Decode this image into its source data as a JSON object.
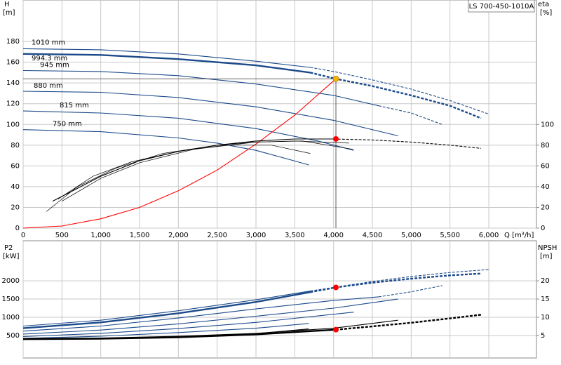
{
  "chart_data": [
    {
      "type": "line",
      "title": "LS 700-450-1010A",
      "ylabel": "H",
      "yunit": "[m]",
      "y2label": "eta",
      "y2unit": "[%]",
      "xlabel": "Q [m³/h]",
      "xlim": [
        0,
        6614
      ],
      "ylim": [
        0,
        220
      ],
      "y2lim": [
        0,
        220
      ],
      "grid": true,
      "xtick_labels": true,
      "xticks": [
        0,
        500,
        {
          "value": 1000,
          "label": "1,000"
        },
        {
          "value": 1500,
          "label": "1,500"
        },
        {
          "value": 2000,
          "label": "2,000"
        },
        {
          "value": 2500,
          "label": "2,500"
        },
        {
          "value": 3000,
          "label": "3,000"
        },
        {
          "value": 3500,
          "label": "3,500"
        },
        {
          "value": 4000,
          "label": "4,000"
        },
        {
          "value": 4500,
          "label": "4,500"
        },
        {
          "value": 5000,
          "label": "5,000"
        },
        {
          "value": 5500,
          "label": "5,500"
        },
        {
          "value": 6000,
          "label": "6,000"
        }
      ],
      "yticks": [
        0,
        20,
        40,
        60,
        80,
        100,
        120,
        140,
        160,
        180
      ],
      "y2ticks": [
        0,
        20,
        40,
        60,
        80,
        100
      ],
      "series": [
        {
          "name": "1010 mm",
          "color": "#1b4a8a",
          "x": [
            0,
            1000,
            2000,
            3000,
            3700
          ],
          "values": [
            173,
            172,
            168,
            161,
            155
          ]
        },
        {
          "color": "#1b4a8a",
          "dashed": true,
          "x": [
            3700,
            4000,
            4500,
            5000,
            5500,
            6000
          ],
          "values": [
            155,
            151,
            143,
            134,
            123,
            110
          ]
        },
        {
          "name": "994.3 mm",
          "color": "#1b4a8a",
          "thick": true,
          "x": [
            0,
            1000,
            2000,
            3000,
            3700
          ],
          "values": [
            168,
            167,
            163,
            157,
            150
          ]
        },
        {
          "color": "#1b4a8a",
          "thick": true,
          "dashed": true,
          "x": [
            3700,
            4030,
            4500,
            5000,
            5500,
            5900
          ],
          "values": [
            150,
            144,
            137,
            128,
            118,
            106
          ]
        },
        {
          "name": "945 mm",
          "color": "#1b4a8a",
          "x": [
            0,
            1000,
            2000,
            3000,
            4000,
            4580
          ],
          "values": [
            152,
            151,
            147,
            139,
            128,
            118
          ]
        },
        {
          "color": "#1b4a8a",
          "dashed": true,
          "x": [
            4580,
            5000,
            5400
          ],
          "values": [
            118,
            111,
            100
          ]
        },
        {
          "name": "880 mm",
          "color": "#1b4a8a",
          "x": [
            0,
            1000,
            2000,
            3000,
            4000,
            4830
          ],
          "values": [
            132,
            131,
            126,
            117,
            104,
            89
          ]
        },
        {
          "name": "815 mm",
          "color": "#1b4a8a",
          "x": [
            0,
            1000,
            2000,
            3000,
            3800,
            4260
          ],
          "values": [
            113,
            111,
            106,
            96,
            84,
            75
          ]
        },
        {
          "name": "750 mm",
          "color": "#1b4a8a",
          "x": [
            0,
            1000,
            2000,
            2500,
            3000,
            3680
          ],
          "values": [
            95,
            93,
            87,
            82,
            75,
            61
          ]
        },
        {
          "color": "#ff0000",
          "x": [
            0,
            500,
            1000,
            1500,
            2000,
            2500,
            3000,
            3500,
            4030
          ],
          "values": [
            0,
            2,
            9,
            20,
            36,
            56,
            81,
            109,
            144
          ]
        },
        {
          "color": "#000000",
          "axis": "y2",
          "x": [
            380,
            1000,
            1500,
            2000,
            2500,
            3000,
            3500,
            4000
          ],
          "values": [
            26,
            50,
            65,
            74,
            80,
            84,
            86,
            86
          ]
        },
        {
          "color": "#000000",
          "axis": "y2",
          "dashed": true,
          "x": [
            4000,
            4500,
            5000,
            5500,
            5900
          ],
          "values": [
            86,
            85,
            83,
            80,
            77
          ]
        },
        {
          "color": "#000000",
          "axis": "y2",
          "thin": true,
          "x": [
            300,
            700,
            1200,
            1800,
            2500,
            3000,
            3500,
            4200
          ],
          "values": [
            16,
            40,
            58,
            72,
            80,
            83,
            84,
            82
          ]
        },
        {
          "color": "#000000",
          "axis": "y2",
          "thin": true,
          "x": [
            450,
            900,
            1400,
            2000,
            2600,
            3200,
            3700
          ],
          "values": [
            28,
            50,
            64,
            74,
            80,
            80,
            72
          ]
        },
        {
          "color": "#000000",
          "axis": "y2",
          "thin": true,
          "x": [
            500,
            1000,
            1500,
            2200,
            3000,
            3600,
            4250
          ],
          "values": [
            26,
            48,
            63,
            76,
            83,
            84,
            76
          ]
        }
      ],
      "points": [
        {
          "x": 4030,
          "y": 144,
          "color": "#f5b400",
          "guide": true
        },
        {
          "x": 4030,
          "y": 86,
          "color": "#ff0000",
          "axis": "y2"
        }
      ]
    },
    {
      "type": "line",
      "ylabel": "P2",
      "yunit": "[kW]",
      "y2label": "NPSH",
      "y2unit": "[m]",
      "xlim": [
        0,
        6614
      ],
      "ylim": [
        -117,
        3100
      ],
      "y2lim": [
        -1.17,
        31
      ],
      "grid": true,
      "xtick_labels": false,
      "xticks": [
        0,
        500,
        1000,
        1500,
        2000,
        2500,
        3000,
        3500,
        4000,
        4500,
        5000,
        5500,
        6000
      ],
      "yticks": [
        500,
        1000,
        1500,
        2000
      ],
      "y2ticks": [
        5,
        10,
        15,
        20
      ],
      "series": [
        {
          "color": "#1b4a8a",
          "x": [
            0,
            1000,
            2000,
            3000,
            3700
          ],
          "values": [
            760,
            920,
            1180,
            1480,
            1720
          ]
        },
        {
          "color": "#1b4a8a",
          "dashed": true,
          "x": [
            3700,
            4500,
            5000,
            5500,
            6000
          ],
          "values": [
            1720,
            1980,
            2120,
            2230,
            2310
          ]
        },
        {
          "color": "#1b4a8a",
          "thick": true,
          "x": [
            0,
            1000,
            2000,
            3000,
            3700
          ],
          "values": [
            700,
            860,
            1110,
            1420,
            1690
          ]
        },
        {
          "color": "#1b4a8a",
          "thick": true,
          "dashed": true,
          "x": [
            3700,
            4030,
            4500,
            5000,
            5500,
            5900
          ],
          "values": [
            1690,
            1820,
            1950,
            2060,
            2150,
            2200
          ]
        },
        {
          "color": "#1b4a8a",
          "x": [
            0,
            1000,
            2000,
            3000,
            4000,
            4580
          ],
          "values": [
            620,
            760,
            980,
            1230,
            1460,
            1560
          ]
        },
        {
          "color": "#1b4a8a",
          "dashed": true,
          "x": [
            4580,
            5000,
            5400
          ],
          "values": [
            1560,
            1700,
            1870
          ]
        },
        {
          "color": "#1b4a8a",
          "x": [
            0,
            1000,
            2000,
            3000,
            4000,
            4830
          ],
          "values": [
            540,
            650,
            820,
            1030,
            1250,
            1500
          ]
        },
        {
          "color": "#1b4a8a",
          "x": [
            0,
            1000,
            2000,
            3000,
            4260
          ],
          "values": [
            470,
            560,
            690,
            860,
            1140
          ]
        },
        {
          "color": "#1b4a8a",
          "x": [
            0,
            1000,
            2000,
            3000,
            3680
          ],
          "values": [
            420,
            480,
            580,
            700,
            830
          ]
        },
        {
          "color": "#000000",
          "axis": "y2",
          "thick": true,
          "x": [
            0,
            1000,
            2000,
            3000,
            4030
          ],
          "values": [
            4,
            4.1,
            4.5,
            5.3,
            6.6
          ]
        },
        {
          "color": "#000000",
          "axis": "y2",
          "thick": true,
          "dashed": true,
          "x": [
            4030,
            4500,
            5000,
            5500,
            5900
          ],
          "values": [
            6.6,
            7.5,
            8.5,
            9.7,
            10.7
          ]
        },
        {
          "color": "#000000",
          "axis": "y2",
          "x": [
            0,
            1000,
            2000,
            3000,
            4000,
            4830
          ],
          "values": [
            4.2,
            4.3,
            4.8,
            5.6,
            7.0,
            9.2
          ]
        },
        {
          "color": "#000000",
          "axis": "y2",
          "x": [
            0,
            1000,
            2000,
            3000,
            3680
          ],
          "values": [
            4.1,
            4.2,
            4.6,
            5.5,
            6.8
          ]
        }
      ],
      "points": [
        {
          "x": 4030,
          "y": 1820,
          "color": "#ff0000"
        },
        {
          "x": 4030,
          "y": 6.6,
          "color": "#ff0000",
          "axis": "y2"
        }
      ]
    }
  ]
}
